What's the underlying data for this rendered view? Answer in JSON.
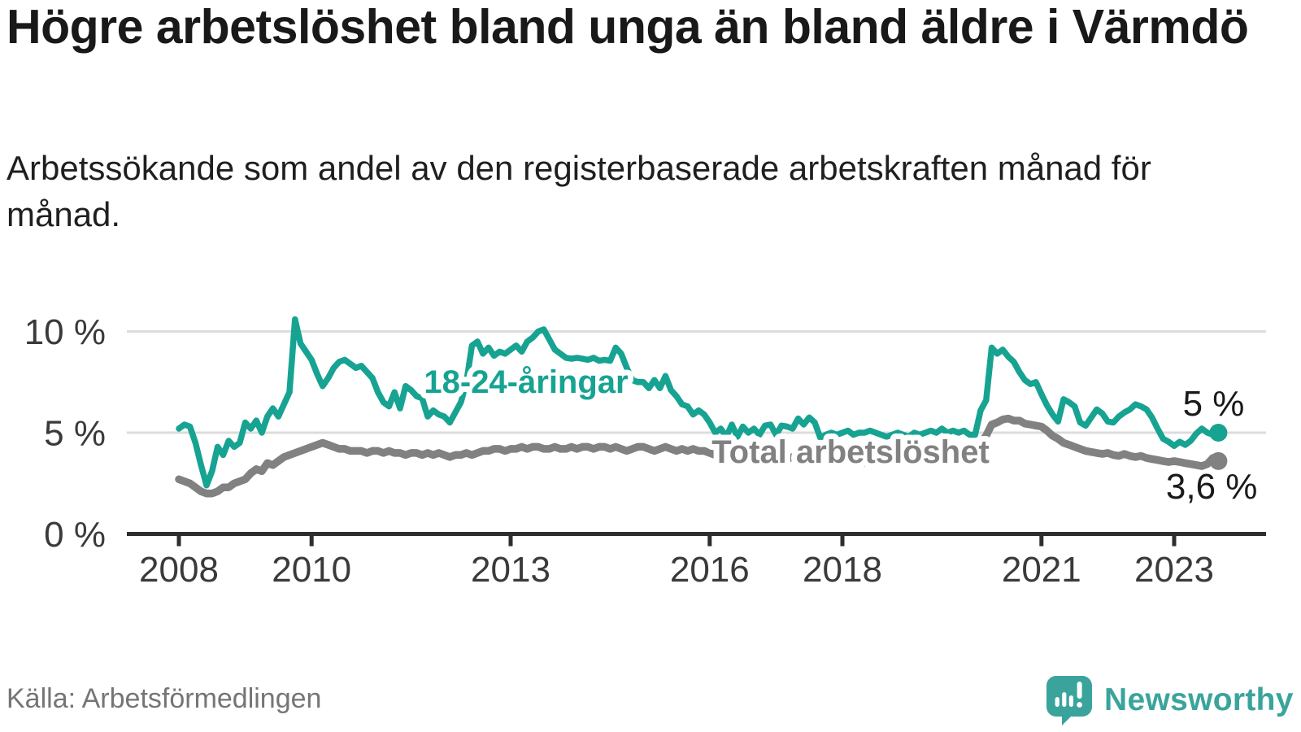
{
  "header": {
    "title": "Högre arbetslöshet bland unga än bland äldre i Värmdö",
    "subtitle": "Arbetssökande som andel av den registerbaserade arbetskraften månad för månad."
  },
  "footer": {
    "source": "Källa: Arbetsförmedlingen",
    "brand": "Newsworthy",
    "logo_icon": "newsworthy-speech-bubble-bar-chart-icon"
  },
  "colors": {
    "youth_line": "#17A392",
    "total_line": "#818181",
    "grid": "#DCDCDC",
    "axis": "#2E2E2E",
    "tick_text": "#3A3A3A",
    "end_label_text": "#1A1A1A",
    "brand_teal": "#3AA49C",
    "title_text": "#191919",
    "source_text": "#757575"
  },
  "chart_data": {
    "type": "line",
    "title": "Högre arbetslöshet bland unga än bland äldre i Värmdö",
    "xlabel": "",
    "ylabel": "Arbetssökande som andel av den registerbaserade arbetskraften",
    "frequency": "monthly",
    "x_start": "2008-01",
    "x_end": "2023-09",
    "ylim": [
      0,
      11
    ],
    "grid": "horizontal",
    "legend_position": "inline-labels",
    "y_ticks": [
      {
        "value": 0,
        "label": "0 %"
      },
      {
        "value": 5,
        "label": "5 %"
      },
      {
        "value": 10,
        "label": "10 %"
      }
    ],
    "x_tick_years": [
      2008,
      2010,
      2013,
      2016,
      2018,
      2021,
      2023
    ],
    "series": [
      {
        "name": "18-24-åringar",
        "color": "#17A392",
        "end_label": "5 %",
        "latest_value": 5.0,
        "values": [
          5.2,
          5.4,
          5.3,
          4.5,
          3.4,
          2.4,
          3.1,
          4.3,
          3.9,
          4.6,
          4.3,
          4.5,
          5.5,
          5.2,
          5.6,
          5.0,
          5.8,
          6.2,
          5.8,
          6.4,
          7.0,
          10.6,
          9.4,
          9.0,
          8.6,
          7.9,
          7.3,
          7.7,
          8.2,
          8.5,
          8.6,
          8.4,
          8.2,
          8.3,
          8.0,
          7.7,
          7.0,
          6.5,
          6.3,
          7.0,
          6.2,
          7.3,
          7.1,
          6.8,
          6.7,
          5.8,
          6.1,
          5.9,
          5.8,
          5.5,
          6.0,
          6.5,
          7.5,
          9.3,
          9.5,
          8.9,
          9.2,
          8.8,
          9.0,
          8.9,
          9.1,
          9.3,
          9.0,
          9.5,
          9.7,
          10.0,
          10.1,
          9.6,
          9.1,
          8.9,
          8.7,
          8.65,
          8.7,
          8.65,
          8.6,
          8.7,
          8.55,
          8.6,
          8.55,
          9.2,
          8.9,
          8.2,
          7.6,
          7.5,
          7.5,
          7.2,
          7.6,
          7.2,
          7.8,
          7.1,
          6.8,
          6.4,
          6.3,
          5.9,
          6.1,
          5.9,
          5.5,
          5.0,
          5.2,
          4.8,
          5.4,
          4.8,
          5.3,
          5.0,
          5.2,
          4.9,
          5.35,
          5.4,
          4.9,
          5.35,
          5.3,
          5.2,
          5.7,
          5.4,
          5.75,
          5.5,
          4.75,
          4.9,
          5.0,
          4.9,
          5.0,
          5.1,
          4.9,
          5.0,
          5.0,
          5.1,
          5.0,
          4.9,
          4.8,
          4.9,
          5.0,
          4.9,
          4.8,
          5.0,
          4.9,
          5.0,
          5.1,
          5.0,
          5.2,
          5.0,
          5.1,
          5.0,
          5.1,
          4.9,
          4.9,
          6.1,
          6.6,
          9.2,
          8.9,
          9.1,
          8.75,
          8.5,
          8.0,
          7.6,
          7.4,
          7.5,
          6.9,
          6.35,
          5.9,
          5.55,
          6.65,
          6.5,
          6.3,
          5.5,
          5.35,
          5.75,
          6.15,
          5.95,
          5.55,
          5.5,
          5.8,
          6.0,
          6.15,
          6.4,
          6.3,
          6.15,
          5.75,
          5.2,
          4.7,
          4.55,
          4.35,
          4.55,
          4.4,
          4.6,
          4.95,
          5.2,
          5.0,
          4.9,
          5.0
        ]
      },
      {
        "name": "Total arbetslöshet",
        "color": "#818181",
        "end_label": "3,6 %",
        "latest_value": 3.6,
        "values": [
          2.7,
          2.6,
          2.5,
          2.3,
          2.1,
          2.0,
          2.0,
          2.1,
          2.3,
          2.3,
          2.5,
          2.6,
          2.7,
          3.0,
          3.2,
          3.1,
          3.5,
          3.4,
          3.6,
          3.8,
          3.9,
          4.0,
          4.1,
          4.2,
          4.3,
          4.4,
          4.5,
          4.4,
          4.3,
          4.2,
          4.2,
          4.1,
          4.1,
          4.1,
          4.0,
          4.1,
          4.1,
          4.0,
          4.1,
          4.0,
          4.0,
          3.9,
          4.0,
          4.0,
          3.9,
          4.0,
          3.9,
          4.0,
          3.9,
          3.8,
          3.9,
          3.9,
          4.0,
          3.9,
          4.0,
          4.1,
          4.1,
          4.2,
          4.2,
          4.1,
          4.2,
          4.2,
          4.3,
          4.2,
          4.3,
          4.3,
          4.2,
          4.2,
          4.3,
          4.2,
          4.2,
          4.3,
          4.2,
          4.3,
          4.3,
          4.2,
          4.3,
          4.3,
          4.2,
          4.3,
          4.2,
          4.1,
          4.2,
          4.3,
          4.3,
          4.2,
          4.1,
          4.2,
          4.3,
          4.2,
          4.1,
          4.2,
          4.1,
          4.2,
          4.1,
          4.1,
          4.0,
          3.9,
          3.9,
          3.8,
          3.8,
          3.9,
          3.8,
          3.8,
          3.7,
          3.8,
          3.8,
          3.8,
          3.8,
          3.7,
          3.7,
          3.8,
          3.7,
          3.7,
          3.8,
          3.7,
          3.6,
          3.7,
          3.7,
          3.8,
          3.7,
          3.6,
          3.6,
          3.6,
          3.5,
          3.6,
          3.6,
          3.5,
          3.5,
          3.6,
          3.6,
          3.7,
          3.6,
          3.6,
          3.7,
          3.6,
          3.7,
          3.8,
          3.7,
          3.8,
          3.8,
          3.9,
          4.0,
          4.1,
          4.2,
          4.5,
          4.85,
          5.4,
          5.5,
          5.65,
          5.7,
          5.6,
          5.6,
          5.45,
          5.4,
          5.35,
          5.3,
          5.1,
          4.85,
          4.7,
          4.5,
          4.4,
          4.3,
          4.2,
          4.1,
          4.05,
          4.0,
          3.95,
          4.0,
          3.9,
          3.85,
          3.95,
          3.85,
          3.8,
          3.85,
          3.75,
          3.7,
          3.65,
          3.6,
          3.55,
          3.6,
          3.55,
          3.5,
          3.45,
          3.4,
          3.35,
          3.45,
          3.75,
          3.6
        ]
      }
    ]
  }
}
